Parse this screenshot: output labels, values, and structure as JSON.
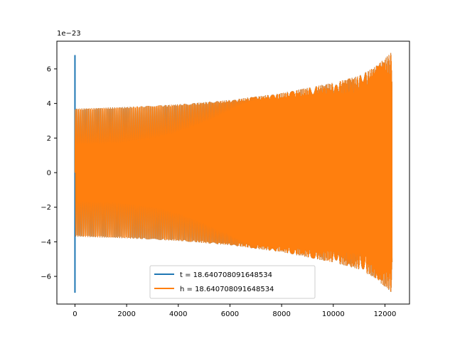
{
  "chart_data": {
    "type": "line",
    "title": "",
    "xlabel": "",
    "ylabel": "",
    "offset_text": "1e−23",
    "xlim": [
      -700,
      12950
    ],
    "ylim": [
      -7.6,
      7.6
    ],
    "xticks": [
      0,
      2000,
      4000,
      6000,
      8000,
      10000,
      12000
    ],
    "xtick_labels": [
      "0",
      "2000",
      "4000",
      "6000",
      "8000",
      "10000",
      "12000"
    ],
    "yticks": [
      -6,
      -4,
      -2,
      0,
      2,
      4,
      6
    ],
    "ytick_labels": [
      "−6",
      "−4",
      "−2",
      "0",
      "2",
      "4",
      "6"
    ],
    "grid": false,
    "legend_position": "lower center",
    "series": [
      {
        "name": "t = 18.640708091648534",
        "color": "#1f77b4",
        "envelope": {
          "x": [
            0,
            2000,
            4000,
            6000,
            8000,
            10000,
            11000,
            11600,
            12000,
            12280
          ],
          "amp": [
            3.7,
            3.8,
            3.95,
            4.2,
            4.6,
            5.2,
            5.6,
            6.1,
            6.6,
            7.0
          ]
        },
        "start_spike": {
          "x": 0,
          "max": 6.8,
          "min": -6.95
        },
        "x_end": 12280
      },
      {
        "name": "h = 18.640708091648534",
        "color": "#ff7f0e",
        "envelope": {
          "x": [
            0,
            2000,
            4000,
            6000,
            8000,
            10000,
            11000,
            11600,
            12000,
            12280
          ],
          "amp": [
            3.7,
            3.8,
            3.95,
            4.2,
            4.6,
            5.2,
            5.6,
            6.1,
            6.6,
            7.0
          ]
        },
        "x_end": 12280
      }
    ]
  }
}
